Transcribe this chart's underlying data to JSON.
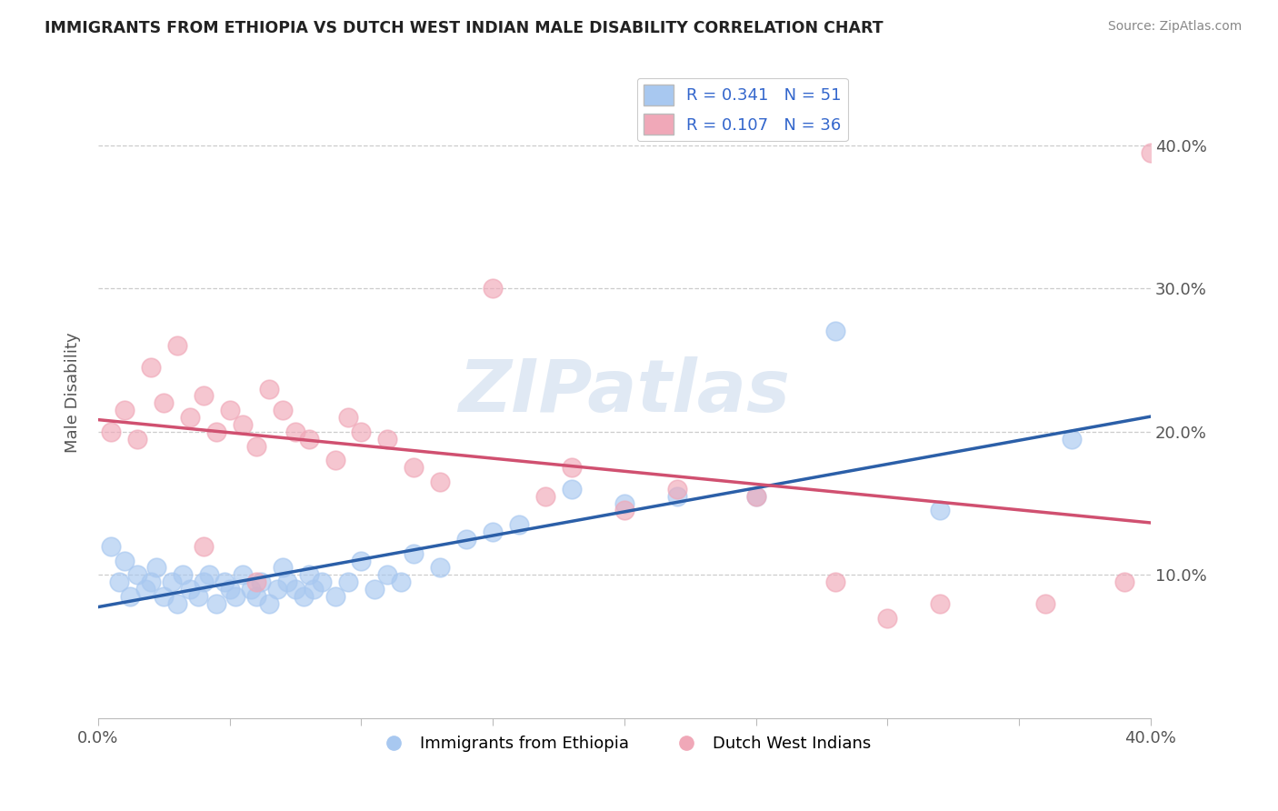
{
  "title": "IMMIGRANTS FROM ETHIOPIA VS DUTCH WEST INDIAN MALE DISABILITY CORRELATION CHART",
  "source": "Source: ZipAtlas.com",
  "ylabel": "Male Disability",
  "xlim": [
    0.0,
    0.4
  ],
  "ylim": [
    0.0,
    0.455
  ],
  "legend_r1": "R = 0.341",
  "legend_n1": "N = 51",
  "legend_r2": "R = 0.107",
  "legend_n2": "N = 36",
  "blue_color": "#A8C8F0",
  "pink_color": "#F0A8B8",
  "line_blue": "#2B5FA8",
  "line_pink": "#D05070",
  "watermark": "ZIPatlas",
  "blue_scatter_x": [
    0.005,
    0.008,
    0.01,
    0.012,
    0.015,
    0.018,
    0.02,
    0.022,
    0.025,
    0.028,
    0.03,
    0.032,
    0.035,
    0.038,
    0.04,
    0.042,
    0.045,
    0.048,
    0.05,
    0.052,
    0.055,
    0.058,
    0.06,
    0.062,
    0.065,
    0.068,
    0.07,
    0.072,
    0.075,
    0.078,
    0.08,
    0.082,
    0.085,
    0.09,
    0.095,
    0.1,
    0.105,
    0.11,
    0.115,
    0.12,
    0.13,
    0.14,
    0.15,
    0.16,
    0.18,
    0.2,
    0.22,
    0.25,
    0.28,
    0.32,
    0.37
  ],
  "blue_scatter_y": [
    0.12,
    0.095,
    0.11,
    0.085,
    0.1,
    0.09,
    0.095,
    0.105,
    0.085,
    0.095,
    0.08,
    0.1,
    0.09,
    0.085,
    0.095,
    0.1,
    0.08,
    0.095,
    0.09,
    0.085,
    0.1,
    0.09,
    0.085,
    0.095,
    0.08,
    0.09,
    0.105,
    0.095,
    0.09,
    0.085,
    0.1,
    0.09,
    0.095,
    0.085,
    0.095,
    0.11,
    0.09,
    0.1,
    0.095,
    0.115,
    0.105,
    0.125,
    0.13,
    0.135,
    0.16,
    0.15,
    0.155,
    0.155,
    0.27,
    0.145,
    0.195
  ],
  "pink_scatter_x": [
    0.005,
    0.01,
    0.015,
    0.02,
    0.025,
    0.03,
    0.035,
    0.04,
    0.045,
    0.05,
    0.055,
    0.06,
    0.065,
    0.07,
    0.075,
    0.08,
    0.09,
    0.095,
    0.1,
    0.11,
    0.12,
    0.13,
    0.15,
    0.17,
    0.2,
    0.22,
    0.28,
    0.3,
    0.32,
    0.36,
    0.39,
    0.4,
    0.18,
    0.25,
    0.04,
    0.06
  ],
  "pink_scatter_y": [
    0.2,
    0.215,
    0.195,
    0.245,
    0.22,
    0.26,
    0.21,
    0.225,
    0.2,
    0.215,
    0.205,
    0.19,
    0.23,
    0.215,
    0.2,
    0.195,
    0.18,
    0.21,
    0.2,
    0.195,
    0.175,
    0.165,
    0.3,
    0.155,
    0.145,
    0.16,
    0.095,
    0.07,
    0.08,
    0.08,
    0.095,
    0.395,
    0.175,
    0.155,
    0.12,
    0.095
  ],
  "grid_color": "#CCCCCC",
  "grid_yticks": [
    0.1,
    0.2,
    0.3,
    0.4
  ],
  "xticks": [
    0.0,
    0.05,
    0.1,
    0.15,
    0.2,
    0.25,
    0.3,
    0.35,
    0.4
  ]
}
